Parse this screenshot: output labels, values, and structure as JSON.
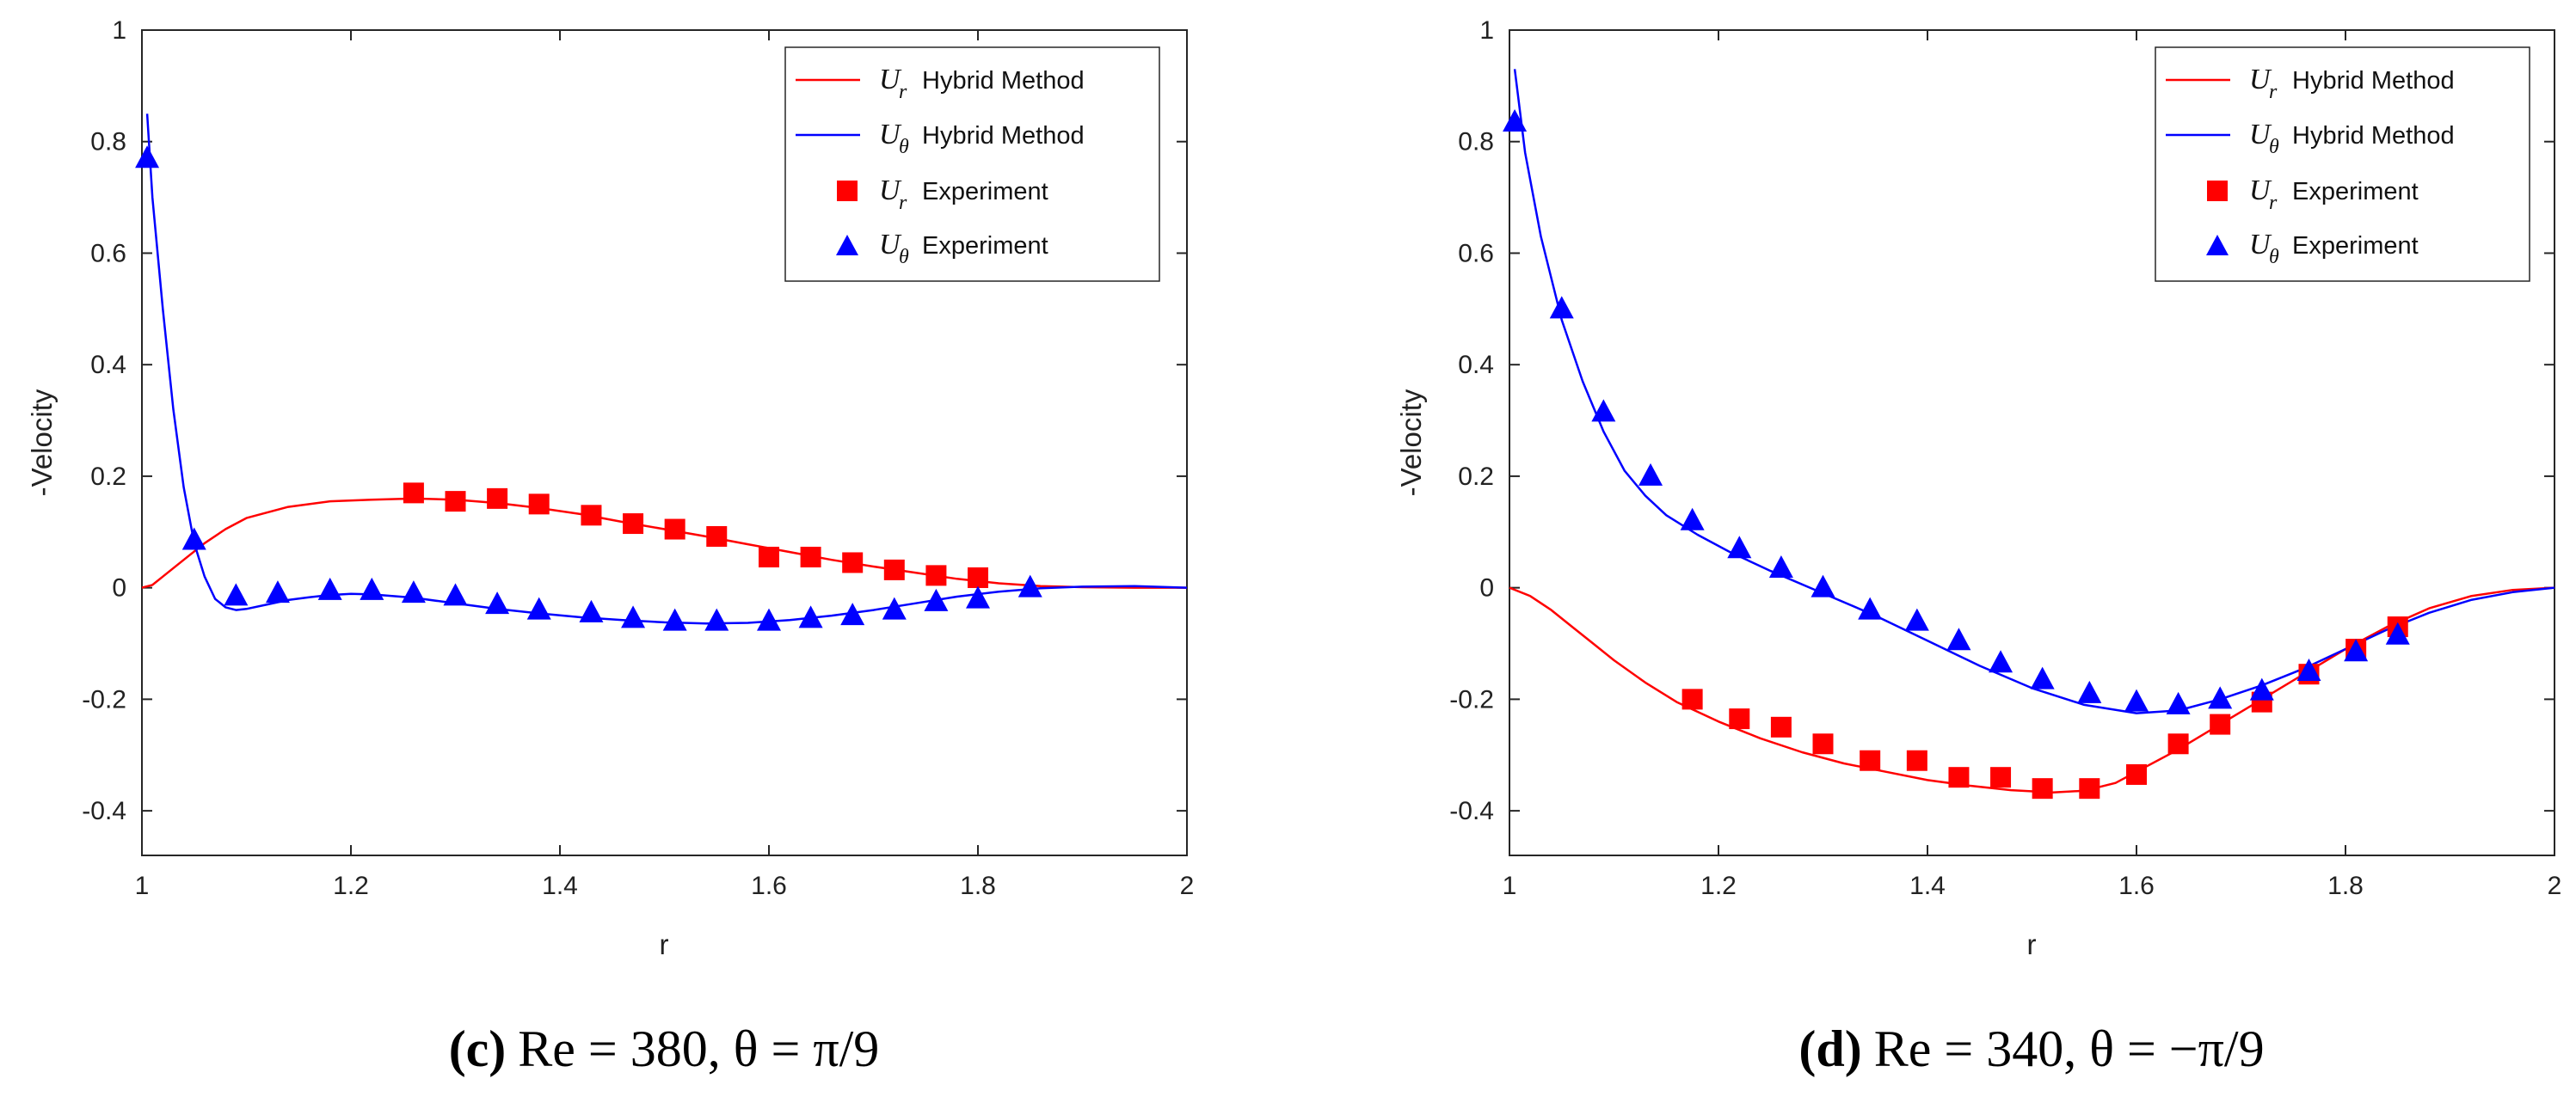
{
  "figure": {
    "panels": [
      {
        "caption": {
          "label": "(c)",
          "text": "Re = 380, θ = π/9"
        },
        "legend": [
          {
            "symbol": "U",
            "subscript": "r",
            "text": "Hybrid Method"
          },
          {
            "symbol": "U",
            "subscript": "θ",
            "text": "Hybrid Method"
          },
          {
            "symbol": "U",
            "subscript": "r",
            "text": "Experiment"
          },
          {
            "symbol": "U",
            "subscript": "θ",
            "text": "Experiment"
          }
        ]
      },
      {
        "caption": {
          "label": "(d)",
          "text": "Re = 340, θ = −π/9"
        },
        "legend": [
          {
            "symbol": "U",
            "subscript": "r",
            "text": "Hybrid Method"
          },
          {
            "symbol": "U",
            "subscript": "θ",
            "text": "Hybrid Method"
          },
          {
            "symbol": "U",
            "subscript": "r",
            "text": "Experiment"
          },
          {
            "symbol": "U",
            "subscript": "θ",
            "text": "Experiment"
          }
        ]
      }
    ]
  },
  "chart_data": [
    {
      "type": "line",
      "title": "",
      "xlabel": "r",
      "ylabel": "-Velocity",
      "xlim": [
        1,
        2
      ],
      "ylim": [
        -0.48,
        1.0
      ],
      "xticks": [
        "1",
        "1.2",
        "1.4",
        "1.6",
        "1.8",
        "2"
      ],
      "yticks": [
        "1",
        "0.8",
        "0.6",
        "0.4",
        "0.2",
        "0",
        "-0.2",
        "-0.4"
      ],
      "legend_position": "top-right",
      "grid": false,
      "colors": {
        "ur": "#ff0000",
        "ut": "#0000ff"
      },
      "series": [
        {
          "name": "U_r Hybrid Method",
          "kind": "line",
          "x": [
            1.0,
            1.01,
            1.02,
            1.04,
            1.06,
            1.08,
            1.1,
            1.14,
            1.18,
            1.22,
            1.26,
            1.3,
            1.34,
            1.38,
            1.42,
            1.46,
            1.5,
            1.54,
            1.58,
            1.62,
            1.66,
            1.7,
            1.74,
            1.78,
            1.82,
            1.86,
            1.9,
            1.95,
            2.0
          ],
          "y": [
            0.0,
            0.005,
            0.02,
            0.05,
            0.08,
            0.105,
            0.125,
            0.145,
            0.155,
            0.158,
            0.16,
            0.158,
            0.152,
            0.143,
            0.132,
            0.118,
            0.105,
            0.092,
            0.078,
            0.064,
            0.05,
            0.038,
            0.027,
            0.016,
            0.008,
            0.003,
            0.001,
            0.0,
            0.0
          ]
        },
        {
          "name": "U_θ Hybrid Method",
          "kind": "line",
          "x": [
            1.005,
            1.01,
            1.02,
            1.03,
            1.04,
            1.05,
            1.06,
            1.07,
            1.08,
            1.09,
            1.1,
            1.12,
            1.14,
            1.16,
            1.18,
            1.2,
            1.22,
            1.26,
            1.3,
            1.34,
            1.38,
            1.42,
            1.46,
            1.5,
            1.54,
            1.58,
            1.62,
            1.66,
            1.7,
            1.74,
            1.78,
            1.82,
            1.86,
            1.9,
            1.95,
            2.0
          ],
          "y": [
            0.85,
            0.7,
            0.5,
            0.32,
            0.18,
            0.08,
            0.02,
            -0.02,
            -0.035,
            -0.04,
            -0.038,
            -0.03,
            -0.022,
            -0.017,
            -0.013,
            -0.011,
            -0.012,
            -0.018,
            -0.028,
            -0.038,
            -0.046,
            -0.053,
            -0.058,
            -0.062,
            -0.064,
            -0.063,
            -0.058,
            -0.05,
            -0.04,
            -0.028,
            -0.016,
            -0.007,
            -0.001,
            0.002,
            0.003,
            0.0
          ]
        },
        {
          "name": "U_r Experiment",
          "kind": "square",
          "x": [
            1.26,
            1.3,
            1.34,
            1.38,
            1.43,
            1.47,
            1.51,
            1.55,
            1.6,
            1.64,
            1.68,
            1.72,
            1.76,
            1.8
          ],
          "y": [
            0.17,
            0.155,
            0.16,
            0.15,
            0.13,
            0.115,
            0.105,
            0.092,
            0.055,
            0.055,
            0.045,
            0.032,
            0.022,
            0.018
          ]
        },
        {
          "name": "U_θ Experiment",
          "kind": "triangle",
          "x": [
            1.005,
            1.05,
            1.09,
            1.13,
            1.18,
            1.22,
            1.26,
            1.3,
            1.34,
            1.38,
            1.43,
            1.47,
            1.51,
            1.55,
            1.6,
            1.64,
            1.68,
            1.72,
            1.76,
            1.8,
            1.85
          ],
          "y": [
            0.77,
            0.085,
            -0.015,
            -0.01,
            -0.005,
            -0.005,
            -0.01,
            -0.015,
            -0.03,
            -0.04,
            -0.045,
            -0.055,
            -0.06,
            -0.06,
            -0.06,
            -0.055,
            -0.05,
            -0.04,
            -0.025,
            -0.02,
            0.0
          ]
        }
      ]
    },
    {
      "type": "line",
      "title": "",
      "xlabel": "r",
      "ylabel": "-Velocity",
      "xlim": [
        1,
        2
      ],
      "ylim": [
        -0.48,
        1.0
      ],
      "xticks": [
        "1",
        "1.2",
        "1.4",
        "1.6",
        "1.8",
        "2"
      ],
      "yticks": [
        "1",
        "0.8",
        "0.6",
        "0.4",
        "0.2",
        "0",
        "-0.2",
        "-0.4"
      ],
      "legend_position": "top-right",
      "grid": false,
      "colors": {
        "ur": "#ff0000",
        "ut": "#0000ff"
      },
      "series": [
        {
          "name": "U_r Hybrid Method",
          "kind": "line",
          "x": [
            1.0,
            1.02,
            1.04,
            1.06,
            1.08,
            1.1,
            1.13,
            1.16,
            1.2,
            1.24,
            1.28,
            1.32,
            1.36,
            1.4,
            1.44,
            1.48,
            1.52,
            1.55,
            1.58,
            1.61,
            1.64,
            1.68,
            1.72,
            1.76,
            1.8,
            1.84,
            1.88,
            1.92,
            1.96,
            2.0
          ],
          "y": [
            0.0,
            -0.015,
            -0.04,
            -0.07,
            -0.1,
            -0.13,
            -0.17,
            -0.205,
            -0.24,
            -0.27,
            -0.295,
            -0.315,
            -0.33,
            -0.345,
            -0.355,
            -0.363,
            -0.367,
            -0.364,
            -0.35,
            -0.32,
            -0.29,
            -0.245,
            -0.2,
            -0.155,
            -0.11,
            -0.07,
            -0.037,
            -0.015,
            -0.004,
            0.0
          ]
        },
        {
          "name": "U_θ Hybrid Method",
          "kind": "line",
          "x": [
            1.005,
            1.015,
            1.03,
            1.05,
            1.07,
            1.09,
            1.11,
            1.13,
            1.15,
            1.18,
            1.21,
            1.25,
            1.3,
            1.35,
            1.4,
            1.45,
            1.5,
            1.55,
            1.6,
            1.64,
            1.68,
            1.72,
            1.76,
            1.8,
            1.84,
            1.88,
            1.92,
            1.96,
            2.0
          ],
          "y": [
            0.93,
            0.78,
            0.63,
            0.48,
            0.37,
            0.28,
            0.21,
            0.165,
            0.13,
            0.095,
            0.065,
            0.03,
            -0.01,
            -0.05,
            -0.095,
            -0.14,
            -0.18,
            -0.21,
            -0.225,
            -0.22,
            -0.2,
            -0.175,
            -0.145,
            -0.11,
            -0.075,
            -0.045,
            -0.022,
            -0.008,
            0.0
          ]
        },
        {
          "name": "U_r Experiment",
          "kind": "square",
          "x": [
            1.175,
            1.22,
            1.26,
            1.3,
            1.345,
            1.39,
            1.43,
            1.47,
            1.51,
            1.555,
            1.6,
            1.64,
            1.68,
            1.72,
            1.765,
            1.81,
            1.85
          ],
          "y": [
            -0.2,
            -0.235,
            -0.25,
            -0.28,
            -0.31,
            -0.31,
            -0.34,
            -0.34,
            -0.36,
            -0.36,
            -0.335,
            -0.28,
            -0.245,
            -0.205,
            -0.155,
            -0.11,
            -0.07
          ]
        },
        {
          "name": "U_θ Experiment",
          "kind": "triangle",
          "x": [
            1.005,
            1.05,
            1.09,
            1.135,
            1.175,
            1.22,
            1.26,
            1.3,
            1.345,
            1.39,
            1.43,
            1.47,
            1.51,
            1.555,
            1.6,
            1.64,
            1.68,
            1.72,
            1.765,
            1.81,
            1.85
          ],
          "y": [
            0.835,
            0.5,
            0.315,
            0.2,
            0.12,
            0.07,
            0.035,
            0.0,
            -0.04,
            -0.06,
            -0.095,
            -0.135,
            -0.165,
            -0.19,
            -0.205,
            -0.21,
            -0.2,
            -0.185,
            -0.15,
            -0.115,
            -0.085
          ]
        }
      ]
    }
  ]
}
